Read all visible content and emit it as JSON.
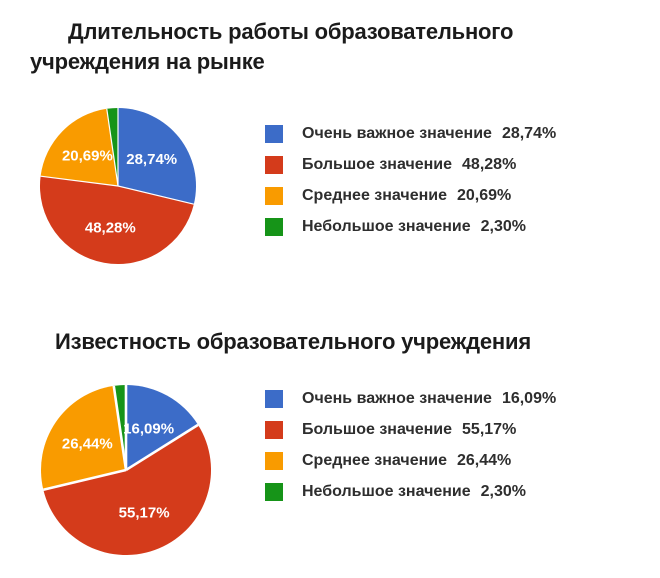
{
  "page": {
    "background_color": "#ffffff",
    "title_color": "#1b1b1b",
    "legend_text_color": "#2e2e2e"
  },
  "chart_data": [
    {
      "type": "pie",
      "title": "Длительность работы образовательного учреждения на рынке",
      "title_lines": [
        "Длительность работы образовательного",
        "учреждения на рынке"
      ],
      "categories": [
        "Очень важное значение",
        "Большое значение",
        "Среднее значение",
        "Небольшое значение"
      ],
      "values": [
        28.74,
        48.28,
        20.69,
        2.3
      ],
      "value_labels": [
        "28,74%",
        "48,28%",
        "20,69%",
        "2,30%"
      ],
      "colors": [
        "#3c6cc8",
        "#d43b1b",
        "#f99b00",
        "#169418"
      ],
      "legend_position": "right",
      "slice_label_color": "#ffffff",
      "start_angle_deg": 0,
      "direction": "clockwise"
    },
    {
      "type": "pie",
      "title": "Известность образовательного учреждения",
      "title_lines": [
        "Известность образовательного учреждения"
      ],
      "categories": [
        "Очень важное значение",
        "Большое значение",
        "Среднее значение",
        "Небольшое значение"
      ],
      "values": [
        16.09,
        55.17,
        26.44,
        2.3
      ],
      "value_labels": [
        "16,09%",
        "55,17%",
        "26,44%",
        "2,30%"
      ],
      "colors": [
        "#3c6cc8",
        "#d43b1b",
        "#f99b00",
        "#169418"
      ],
      "legend_position": "right",
      "slice_label_color": "#ffffff",
      "start_angle_deg": 0,
      "direction": "clockwise"
    }
  ]
}
